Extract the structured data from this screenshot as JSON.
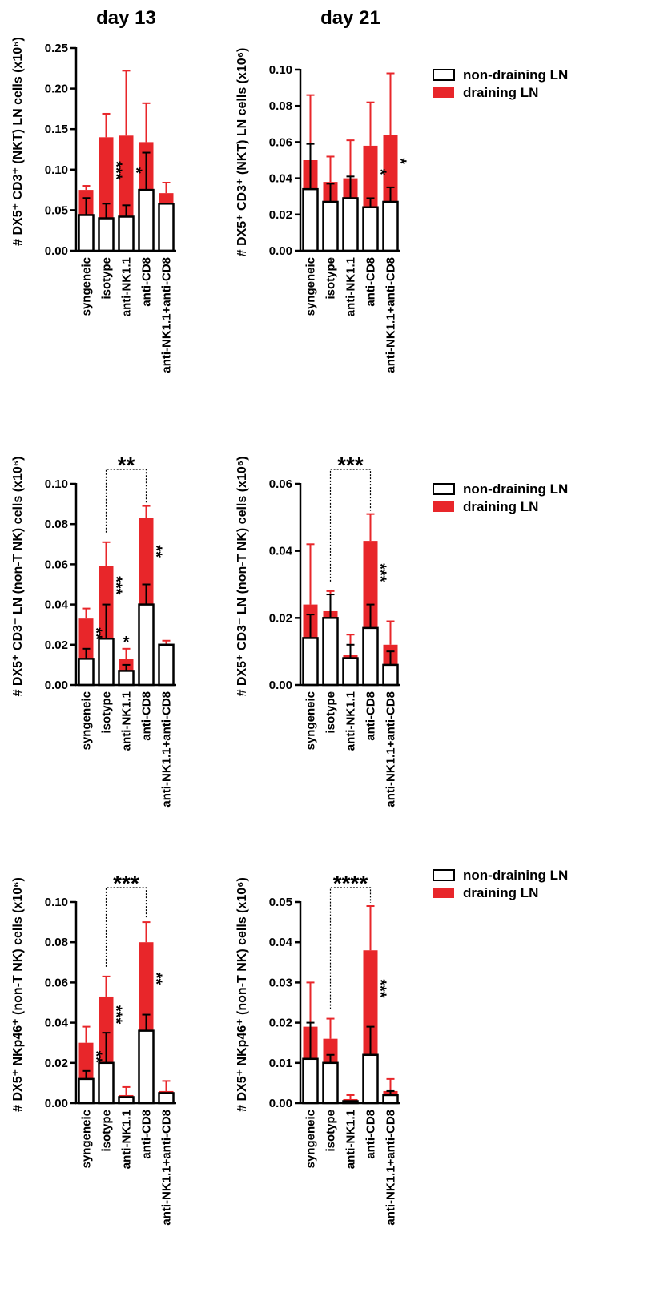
{
  "chart_data": [
    {
      "type": "bar",
      "barmode": "overlay",
      "title": "day 13",
      "y_label": "# DX5⁺ CD3⁺ (NKT) LN cells (x10⁶)",
      "categories": [
        "syngeneic",
        "isotype",
        "anti-NK1.1",
        "anti-CD8",
        "anti-NK1.1+anti-CD8"
      ],
      "series": [
        {
          "name": "non-draining LN",
          "color": "#ffffff",
          "values": [
            0.044,
            0.04,
            0.042,
            0.075,
            0.058
          ],
          "errors": [
            0.021,
            0.018,
            0.014,
            0.046,
            0
          ]
        },
        {
          "name": "draining LN",
          "color": "#e8262a",
          "values": [
            0.075,
            0.14,
            0.142,
            0.134,
            0.071
          ],
          "errors": [
            0.005,
            0.029,
            0.08,
            0.048,
            0.013
          ]
        }
      ],
      "ylim": [
        0,
        0.25
      ],
      "yticks": [
        {
          "value": 0,
          "label": "0.00"
        },
        0.05,
        {
          "value": 0.1,
          "label": "0.10"
        },
        0.15,
        {
          "value": 0.2,
          "label": "0.20"
        },
        0.25
      ],
      "annotations": [
        {
          "text": "***",
          "category": "isotype"
        },
        {
          "text": "*",
          "category": "anti-NK1.1"
        }
      ]
    },
    {
      "type": "bar",
      "barmode": "overlay",
      "title": "day 21",
      "y_label": "# DX5⁺ CD3⁺ (NKT) LN cells (x10⁶)",
      "categories": [
        "syngeneic",
        "isotype",
        "anti-NK1.1",
        "anti-CD8",
        "anti-NK1.1+anti-CD8"
      ],
      "series": [
        {
          "name": "non-draining LN",
          "color": "#ffffff",
          "values": [
            0.034,
            0.027,
            0.029,
            0.024,
            0.027
          ],
          "errors": [
            0.025,
            0.01,
            0.012,
            0.005,
            0.008
          ]
        },
        {
          "name": "draining LN",
          "color": "#e8262a",
          "values": [
            0.05,
            0.038,
            0.04,
            0.058,
            0.064
          ],
          "errors": [
            0.036,
            0.014,
            0.021,
            0.024,
            0.034
          ]
        }
      ],
      "ylim": [
        0,
        0.1
      ],
      "yticks": [
        {
          "value": 0,
          "label": "0.00"
        },
        0.02,
        0.04,
        0.06,
        0.08,
        {
          "value": 0.1,
          "label": "0.10"
        }
      ],
      "annotations": [
        {
          "text": "*",
          "category": "anti-CD8"
        },
        {
          "text": "*",
          "category": "anti-NK1.1+anti-CD8"
        }
      ],
      "legend": "right"
    },
    {
      "type": "bar",
      "barmode": "overlay",
      "y_label": "# DX5⁺ CD3⁻ LN (non-T NK) cells (x10⁶)",
      "categories": [
        "syngeneic",
        "isotype",
        "anti-NK1.1",
        "anti-CD8",
        "anti-NK1.1+anti-CD8"
      ],
      "series": [
        {
          "name": "non-draining LN",
          "color": "#ffffff",
          "values": [
            0.013,
            0.023,
            0.007,
            0.04,
            0.02
          ],
          "errors": [
            0.005,
            0.017,
            0.003,
            0.01,
            0
          ]
        },
        {
          "name": "draining LN",
          "color": "#e8262a",
          "values": [
            0.033,
            0.059,
            0.013,
            0.083,
            0.02
          ],
          "errors": [
            0.005,
            0.012,
            0.005,
            0.006,
            0.002
          ]
        }
      ],
      "ylim": [
        0,
        0.1
      ],
      "yticks": [
        {
          "value": 0,
          "label": "0.00"
        },
        0.02,
        0.04,
        0.06,
        0.08,
        {
          "value": 0.1,
          "label": "0.10"
        }
      ],
      "annotations": [
        {
          "text": "**",
          "category": "syngeneic"
        },
        {
          "text": "***",
          "category": "isotype"
        },
        {
          "text": "*",
          "category": "anti-NK1.1",
          "placement": "above"
        },
        {
          "text": "**",
          "category": "anti-CD8"
        }
      ],
      "brackets": [
        {
          "text": "**",
          "from": "isotype",
          "to": "anti-CD8"
        }
      ]
    },
    {
      "type": "bar",
      "barmode": "overlay",
      "y_label": "# DX5⁺ CD3⁻ LN (non-T NK) cells (x10⁶)",
      "categories": [
        "syngeneic",
        "isotype",
        "anti-NK1.1",
        "anti-CD8",
        "anti-NK1.1+anti-CD8"
      ],
      "series": [
        {
          "name": "non-draining LN",
          "color": "#ffffff",
          "values": [
            0.014,
            0.02,
            0.008,
            0.017,
            0.006
          ],
          "errors": [
            0.007,
            0.007,
            0.004,
            0.007,
            0.004
          ]
        },
        {
          "name": "draining LN",
          "color": "#e8262a",
          "values": [
            0.024,
            0.022,
            0.009,
            0.043,
            0.012
          ],
          "errors": [
            0.018,
            0.006,
            0.006,
            0.008,
            0.007
          ]
        }
      ],
      "ylim": [
        0,
        0.06
      ],
      "yticks": [
        {
          "value": 0,
          "label": "0.00"
        },
        0.02,
        0.04,
        0.06
      ],
      "annotations": [
        {
          "text": "***",
          "category": "anti-CD8"
        }
      ],
      "brackets": [
        {
          "text": "***",
          "from": "isotype",
          "to": "anti-CD8"
        }
      ],
      "legend": "right"
    },
    {
      "type": "bar",
      "barmode": "overlay",
      "y_label": "# DX5⁺ NKp46⁺ (non-T NK) cells (x10⁶)",
      "categories": [
        "syngeneic",
        "isotype",
        "anti-NK1.1",
        "anti-CD8",
        "anti-NK1.1+anti-CD8"
      ],
      "series": [
        {
          "name": "non-draining LN",
          "color": "#ffffff",
          "values": [
            0.012,
            0.02,
            0.003,
            0.036,
            0.005
          ],
          "errors": [
            0.004,
            0.015,
            0,
            0.008,
            0
          ]
        },
        {
          "name": "draining LN",
          "color": "#e8262a",
          "values": [
            0.03,
            0.053,
            0.004,
            0.08,
            0.006
          ],
          "errors": [
            0.008,
            0.01,
            0.004,
            0.01,
            0.005
          ]
        }
      ],
      "ylim": [
        0,
        0.1
      ],
      "yticks": [
        {
          "value": 0,
          "label": "0.00"
        },
        0.02,
        0.04,
        0.06,
        0.08,
        {
          "value": 0.1,
          "label": "0.10"
        }
      ],
      "annotations": [
        {
          "text": "**",
          "category": "syngeneic"
        },
        {
          "text": "***",
          "category": "isotype"
        },
        {
          "text": "**",
          "category": "anti-CD8"
        }
      ],
      "brackets": [
        {
          "text": "***",
          "from": "isotype",
          "to": "anti-CD8"
        }
      ]
    },
    {
      "type": "bar",
      "barmode": "overlay",
      "y_label": "# DX5⁺ NKp46⁺ (non-T NK) cells (x10⁶)",
      "categories": [
        "syngeneic",
        "isotype",
        "anti-NK1.1",
        "anti-CD8",
        "anti-NK1.1+anti-CD8"
      ],
      "series": [
        {
          "name": "non-draining LN",
          "color": "#ffffff",
          "values": [
            0.011,
            0.01,
            0.0005,
            0.012,
            0.002
          ],
          "errors": [
            0.009,
            0.002,
            0,
            0.007,
            0.001
          ]
        },
        {
          "name": "draining LN",
          "color": "#e8262a",
          "values": [
            0.019,
            0.016,
            0.001,
            0.038,
            0.003
          ],
          "errors": [
            0.011,
            0.005,
            0.001,
            0.011,
            0.003
          ]
        }
      ],
      "ylim": [
        0,
        0.05
      ],
      "yticks": [
        {
          "value": 0,
          "label": "0.00"
        },
        0.01,
        0.02,
        0.03,
        0.04,
        0.05
      ],
      "annotations": [
        {
          "text": "***",
          "category": "anti-CD8"
        }
      ],
      "brackets": [
        {
          "text": "****",
          "from": "isotype",
          "to": "anti-CD8"
        }
      ],
      "legend": "right"
    }
  ]
}
